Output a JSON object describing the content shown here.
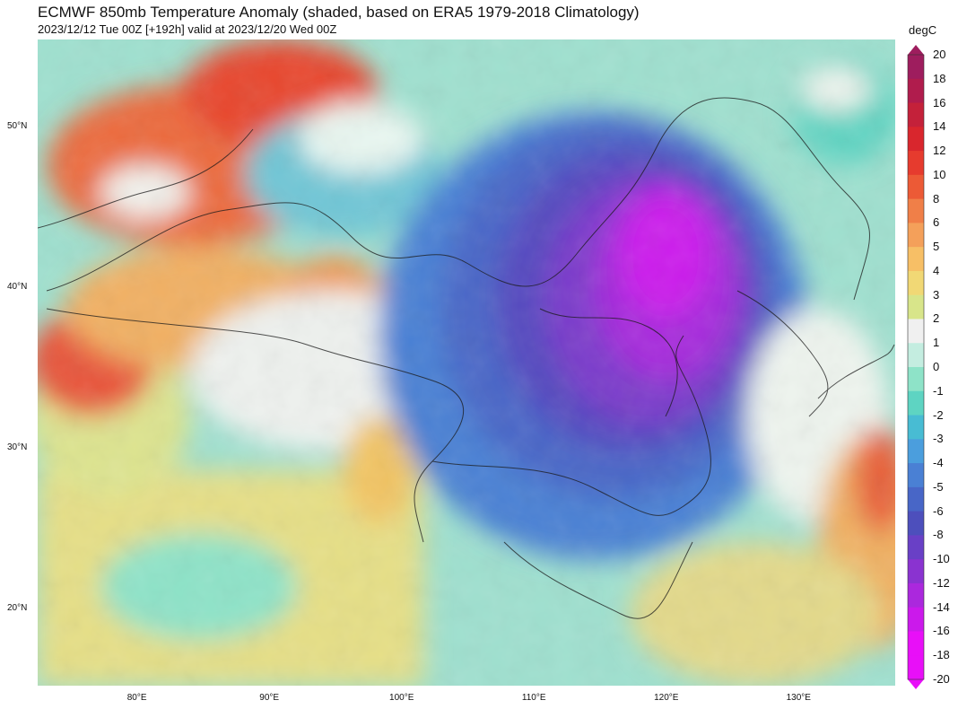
{
  "title": "ECMWF 850mb Temperature Anomaly (shaded, based on ERA5 1979-2018 Climatology)",
  "subtitle": "2023/12/12 Tue 00Z [+192h] valid at 2023/12/20 Wed 00Z",
  "colorbar": {
    "unit": "degC",
    "levels": [
      "20",
      "18",
      "16",
      "14",
      "12",
      "10",
      "8",
      "6",
      "5",
      "4",
      "3",
      "2",
      "1",
      "0",
      "-1",
      "-2",
      "-3",
      "-4",
      "-5",
      "-6",
      "-8",
      "-10",
      "-12",
      "-14",
      "-16",
      "-18",
      "-20"
    ],
    "colors": [
      "#9e1d5e",
      "#b01c4d",
      "#c4213a",
      "#d9262d",
      "#e63b2e",
      "#ec5a36",
      "#f07f48",
      "#f4a05a",
      "#f7bf66",
      "#f1d875",
      "#d8e58a",
      "#f0f0f0",
      "#c4ede0",
      "#8ee3c8",
      "#5ed4c2",
      "#48bcd3",
      "#4b9edd",
      "#4a80d4",
      "#4866c7",
      "#4d4fbc",
      "#6940c6",
      "#8a33d0",
      "#ab28dd",
      "#cb19eb",
      "#e80ff8"
    ]
  },
  "axes": {
    "lat_labels": [
      "50°N",
      "40°N",
      "30°N",
      "20°N"
    ],
    "lon_labels": [
      "80°E",
      "90°E",
      "100°E",
      "110°E",
      "120°E",
      "130°E"
    ]
  },
  "map": {
    "region": "China and surrounding East Asia",
    "anomaly_pattern": "Strong cold anomaly (-14 to -20 degC) over north-central and eastern China; warm anomalies (+6 to +10 degC) over Kazakhstan/western Mongolia; near-normal over Tibet; warm over western Pacific"
  }
}
